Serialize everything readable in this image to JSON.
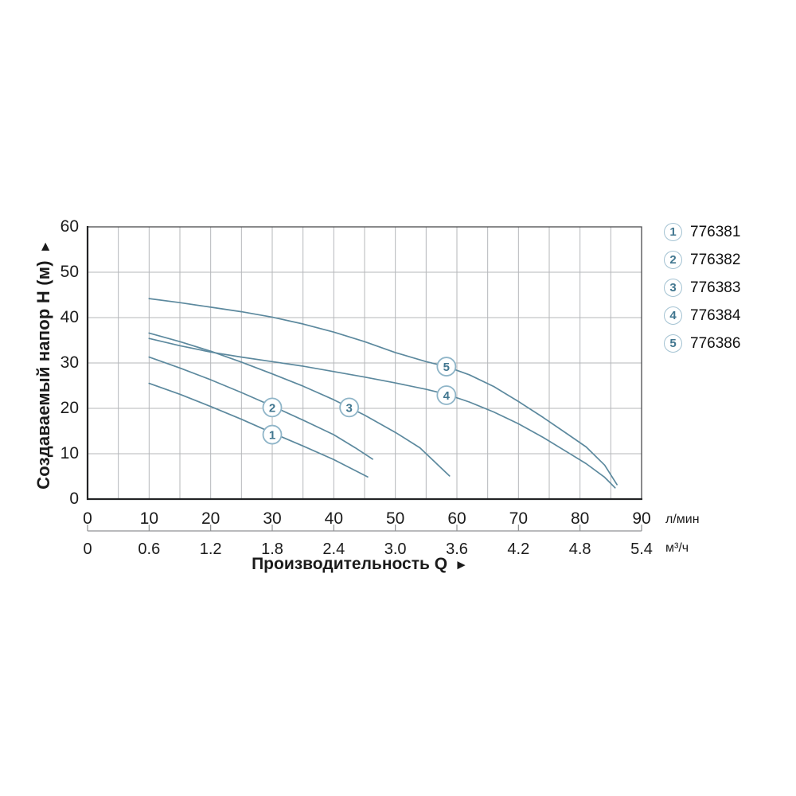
{
  "axes": {
    "y_title": "Создаваемый напор H (м)",
    "x_title": "Производительность Q",
    "arrow_glyph": "►",
    "y_ticks": [
      "0",
      "10",
      "20",
      "30",
      "40",
      "50",
      "60"
    ],
    "x_ticks_lmin": [
      "0",
      "10",
      "20",
      "30",
      "40",
      "50",
      "60",
      "70",
      "80",
      "90"
    ],
    "x_ticks_m3h": [
      "0",
      "0.6",
      "1.2",
      "1.8",
      "2.4",
      "3.0",
      "3.6",
      "4.2",
      "4.8",
      "5.4"
    ],
    "unit_primary": "л/мин",
    "unit_secondary": "м³/ч"
  },
  "legend": {
    "items": [
      {
        "num": "1",
        "model": "776381"
      },
      {
        "num": "2",
        "model": "776382"
      },
      {
        "num": "3",
        "model": "776383"
      },
      {
        "num": "4",
        "model": "776384"
      },
      {
        "num": "5",
        "model": "776386"
      }
    ]
  },
  "chart_data": {
    "type": "line",
    "title": "",
    "xlabel": "Производительность Q",
    "ylabel": "Создаваемый напор H (м)",
    "x_unit_primary": "л/мин",
    "x_unit_secondary": "м³/ч",
    "secondary_per_primary": 0.06,
    "xlim": [
      0,
      90
    ],
    "ylim": [
      0,
      60
    ],
    "x_grid_step": 5,
    "y_grid_step": 10,
    "grid": true,
    "legend_position": "top-right",
    "series": [
      {
        "id": "1",
        "model": "776381",
        "points": [
          [
            10,
            25.5
          ],
          [
            15,
            23.1
          ],
          [
            20,
            20.4
          ],
          [
            25,
            17.6
          ],
          [
            30,
            14.6
          ],
          [
            35,
            11.7
          ],
          [
            40,
            8.7
          ],
          [
            45.5,
            4.9
          ]
        ]
      },
      {
        "id": "2",
        "model": "776382",
        "points": [
          [
            10,
            31.3
          ],
          [
            15,
            28.9
          ],
          [
            20,
            26.3
          ],
          [
            25,
            23.5
          ],
          [
            30,
            20.5
          ],
          [
            35,
            17.4
          ],
          [
            40,
            14.2
          ],
          [
            43.5,
            11.3
          ],
          [
            46.3,
            8.8
          ]
        ]
      },
      {
        "id": "3",
        "model": "776383",
        "points": [
          [
            10,
            36.6
          ],
          [
            15,
            34.7
          ],
          [
            20,
            32.6
          ],
          [
            25,
            30.2
          ],
          [
            30,
            27.6
          ],
          [
            35,
            24.9
          ],
          [
            40,
            21.9
          ],
          [
            45,
            18.5
          ],
          [
            50,
            14.7
          ],
          [
            54,
            11.3
          ],
          [
            58.8,
            5.1
          ]
        ]
      },
      {
        "id": "4",
        "model": "776384",
        "points": [
          [
            10,
            35.4
          ],
          [
            15,
            33.8
          ],
          [
            20,
            32.4
          ],
          [
            25,
            31.3
          ],
          [
            30,
            30.3
          ],
          [
            35,
            29.3
          ],
          [
            40,
            28.1
          ],
          [
            45,
            26.9
          ],
          [
            50,
            25.6
          ],
          [
            55,
            24.2
          ],
          [
            58.3,
            23.1
          ],
          [
            62,
            21.4
          ],
          [
            66,
            19.2
          ],
          [
            70,
            16.6
          ],
          [
            74,
            13.6
          ],
          [
            78,
            10.3
          ],
          [
            81,
            7.8
          ],
          [
            84,
            4.8
          ],
          [
            85.7,
            2.5
          ]
        ]
      },
      {
        "id": "5",
        "model": "776386",
        "points": [
          [
            10,
            44.2
          ],
          [
            15,
            43.3
          ],
          [
            20,
            42.3
          ],
          [
            25,
            41.3
          ],
          [
            30,
            40.1
          ],
          [
            35,
            38.6
          ],
          [
            40,
            36.8
          ],
          [
            45,
            34.7
          ],
          [
            50,
            32.3
          ],
          [
            55,
            30.3
          ],
          [
            58.3,
            29.2
          ],
          [
            62,
            27.4
          ],
          [
            66,
            24.8
          ],
          [
            70,
            21.5
          ],
          [
            74,
            18.0
          ],
          [
            78,
            14.3
          ],
          [
            81,
            11.5
          ],
          [
            84,
            7.5
          ],
          [
            86,
            3.2
          ]
        ]
      }
    ],
    "curve_labels": [
      {
        "num": "1",
        "q": 30,
        "h": 14.2
      },
      {
        "num": "2",
        "q": 30,
        "h": 20.2
      },
      {
        "num": "3",
        "q": 42.5,
        "h": 20.2
      },
      {
        "num": "4",
        "q": 58.3,
        "h": 22.9
      },
      {
        "num": "5",
        "q": 58.3,
        "h": 29.2
      }
    ]
  },
  "colors": {
    "curve": "#5c899e",
    "grid": "#b5b7ba",
    "border": "#4a4b4d",
    "axis_strong": "#232426",
    "secondary_axis": "#8f9193",
    "label_circle_stroke": "#8fb5c8",
    "label_number": "#41768f",
    "legend_circle_stroke": "#a3c2d2",
    "text": "#1b1b1b"
  }
}
